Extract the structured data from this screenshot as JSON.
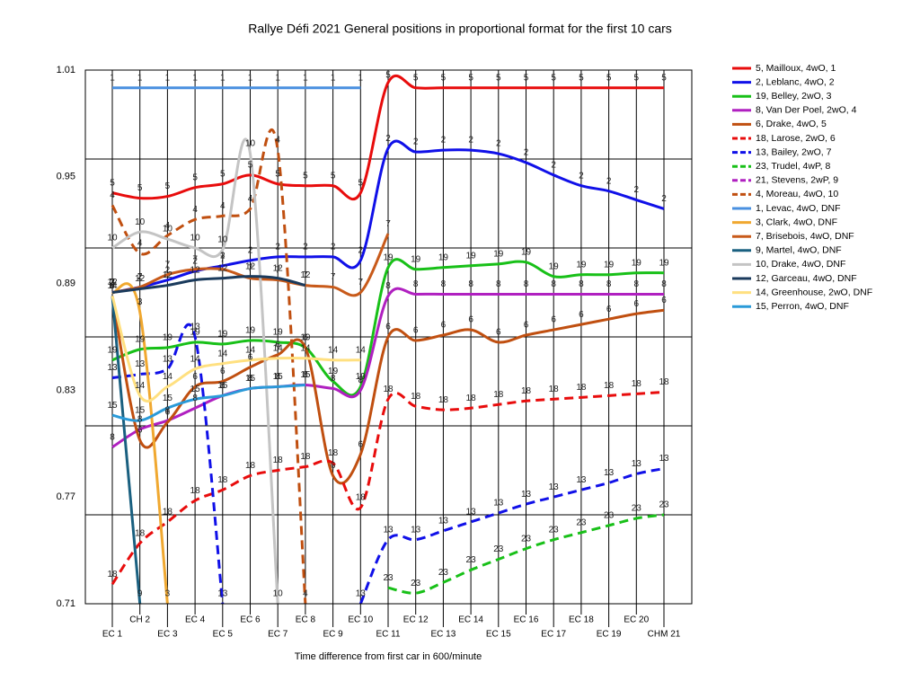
{
  "chart_data": {
    "type": "line",
    "title": "Rallye Défi 2021  General positions in proportional format for the first 10 cars",
    "x_label": "Time difference from first car in 600/minute",
    "categories": [
      "EC 1",
      "CH 2",
      "EC 3",
      "EC 4",
      "EC 5",
      "EC 6",
      "EC 7",
      "EC 8",
      "EC 9",
      "EC 10",
      "EC 11",
      "EC 12",
      "EC 13",
      "EC 14",
      "EC 15",
      "EC 16",
      "EC 17",
      "EC 18",
      "EC 19",
      "EC 20",
      "CHM 21"
    ],
    "ylim": [
      0.71,
      1.01
    ],
    "yticks": [
      0.71,
      0.77,
      0.83,
      0.89,
      0.95,
      1.01
    ],
    "ygrid": [
      0.76,
      0.81,
      0.86,
      0.91,
      0.96
    ],
    "grid": true,
    "legend": "right",
    "series": [
      {
        "name": "5, Mailloux, 4wO, 1",
        "label": "5",
        "color": "#e80c0c",
        "dash": false,
        "values": [
          0.941,
          0.938,
          0.939,
          0.944,
          0.946,
          0.951,
          0.946,
          0.945,
          0.945,
          0.941,
          1.003,
          1.0,
          1.0,
          1.0,
          1.0,
          1.0,
          1.0,
          1.0,
          1.0,
          1.0,
          1.0
        ]
      },
      {
        "name": "2, Leblanc, 4wO, 2",
        "label": "2",
        "color": "#1010e8",
        "dash": false,
        "values": [
          0.885,
          0.888,
          0.892,
          0.897,
          0.9,
          0.903,
          0.905,
          0.905,
          0.905,
          0.903,
          0.966,
          0.964,
          0.965,
          0.965,
          0.963,
          0.958,
          0.951,
          0.945,
          0.942,
          0.937,
          0.932
        ]
      },
      {
        "name": "19, Belley, 2wO, 3",
        "label": "19",
        "color": "#18c018",
        "dash": false,
        "values": [
          0.847,
          0.853,
          0.854,
          0.857,
          0.856,
          0.858,
          0.857,
          0.854,
          0.835,
          0.832,
          0.899,
          0.898,
          0.899,
          0.9,
          0.901,
          0.902,
          0.894,
          0.895,
          0.895,
          0.896,
          0.896
        ]
      },
      {
        "name": "8, Van Der Poel, 2wO, 4",
        "label": "8",
        "color": "#b020c0",
        "dash": false,
        "values": [
          0.798,
          0.808,
          0.813,
          0.82,
          0.827,
          0.831,
          0.832,
          0.833,
          0.831,
          0.83,
          0.883,
          0.884,
          0.884,
          0.884,
          0.884,
          0.884,
          0.884,
          0.884,
          0.884,
          0.884,
          0.884
        ]
      },
      {
        "name": "6, Drake, 4wO, 5",
        "label": "6",
        "color": "#c04f10",
        "dash": false,
        "values": [
          0.883,
          0.802,
          0.812,
          0.832,
          0.835,
          0.843,
          0.85,
          0.854,
          0.782,
          0.794,
          0.86,
          0.858,
          0.861,
          0.864,
          0.857,
          0.861,
          0.864,
          0.867,
          0.87,
          0.873,
          0.875
        ]
      },
      {
        "name": "18, Larose, 2wO, 6",
        "label": "18",
        "color": "#e80c0c",
        "dash": true,
        "values": [
          0.721,
          0.744,
          0.756,
          0.768,
          0.774,
          0.782,
          0.785,
          0.787,
          0.789,
          0.764,
          0.825,
          0.821,
          0.819,
          0.82,
          0.822,
          0.824,
          0.825,
          0.826,
          0.827,
          0.828,
          0.829
        ]
      },
      {
        "name": "13, Bailey, 2wO, 7",
        "label": "13",
        "color": "#1010e8",
        "dash": true,
        "values": [
          0.837,
          0.839,
          0.842,
          0.86,
          0.71,
          null,
          null,
          null,
          null,
          0.71,
          0.746,
          0.746,
          0.751,
          0.756,
          0.761,
          0.766,
          0.77,
          0.774,
          0.778,
          0.783,
          0.786
        ]
      },
      {
        "name": "23, Trudel, 4wP, 8",
        "label": "23",
        "color": "#18c018",
        "dash": true,
        "values": [
          null,
          null,
          null,
          null,
          null,
          null,
          null,
          null,
          null,
          null,
          0.719,
          0.716,
          0.722,
          0.729,
          0.735,
          0.741,
          0.746,
          0.75,
          0.754,
          0.758,
          0.76
        ]
      },
      {
        "name": "21, Stevens, 2wP, 9",
        "color": "#b020c0",
        "dash": true,
        "values": [
          null,
          null,
          null,
          null,
          null,
          null,
          null,
          null,
          null,
          null,
          null,
          null,
          null,
          null,
          null,
          null,
          null,
          null,
          null,
          null,
          null
        ]
      },
      {
        "name": "4, Moreau, 4wO, 10",
        "label": "4",
        "color": "#c04f10",
        "dash": true,
        "values": [
          0.934,
          0.907,
          0.917,
          0.926,
          0.928,
          0.932,
          0.965,
          0.71,
          null,
          null,
          null,
          null,
          null,
          null,
          null,
          null,
          null,
          null,
          null,
          null,
          null
        ]
      },
      {
        "name": "1, Levac, 4wO, DNF",
        "label": "1",
        "color": "#4a90e0",
        "dash": false,
        "values": [
          1.0,
          1.0,
          1.0,
          1.0,
          1.0,
          1.0,
          1.0,
          1.0,
          1.0,
          1.0,
          null,
          null,
          null,
          null,
          null,
          null,
          null,
          null,
          null,
          null,
          null
        ]
      },
      {
        "name": "3, Clark, 4wO, DNF",
        "label": "3",
        "color": "#f0a830",
        "dash": false,
        "values": [
          0.885,
          0.874,
          0.71,
          null,
          null,
          null,
          null,
          null,
          null,
          null,
          null,
          null,
          null,
          null,
          null,
          null,
          null,
          null,
          null,
          null,
          null
        ]
      },
      {
        "name": "7, Brisebois, 4wO, DNF",
        "label": "7",
        "color": "#c85a1a",
        "dash": false,
        "values": [
          0.885,
          0.888,
          0.895,
          0.898,
          0.898,
          0.893,
          0.892,
          0.889,
          0.888,
          0.885,
          0.918,
          null,
          null,
          null,
          null,
          null,
          null,
          null,
          null,
          null,
          null
        ]
      },
      {
        "name": "9, Martel, 4wO, DNF",
        "label": "9",
        "color": "#1a6080",
        "dash": false,
        "values": [
          0.883,
          0.71,
          null,
          null,
          null,
          null,
          null,
          null,
          null,
          null,
          null,
          null,
          null,
          null,
          null,
          null,
          null,
          null,
          null,
          null,
          null
        ]
      },
      {
        "name": "10, Drake, 4wO, DNF",
        "label": "10",
        "color": "#c4c4c4",
        "dash": false,
        "values": [
          0.91,
          0.919,
          0.915,
          0.91,
          0.909,
          0.963,
          0.71,
          null,
          null,
          null,
          null,
          null,
          null,
          null,
          null,
          null,
          null,
          null,
          null,
          null,
          null
        ]
      },
      {
        "name": "12, Garceau, 4wO, DNF",
        "label": "12",
        "color": "#1a3a5c",
        "dash": false,
        "values": [
          0.885,
          0.887,
          0.889,
          0.892,
          0.893,
          0.894,
          0.893,
          0.889,
          null,
          null,
          null,
          null,
          null,
          null,
          null,
          null,
          null,
          null,
          null,
          null,
          null
        ]
      },
      {
        "name": "14, Greenhouse, 2wO, DNF",
        "label": "14",
        "color": "#ffe080",
        "dash": false,
        "values": [
          0.883,
          0.827,
          0.832,
          0.842,
          0.845,
          0.847,
          0.848,
          0.848,
          0.847,
          0.847,
          null,
          null,
          null,
          null,
          null,
          null,
          null,
          null,
          null,
          null,
          null
        ]
      },
      {
        "name": "15, Perron, 4wO, DNF",
        "label": "15",
        "color": "#2a9ad8",
        "dash": false,
        "values": [
          0.816,
          0.813,
          0.82,
          0.825,
          0.827,
          0.831,
          0.832,
          0.833,
          null,
          null,
          null,
          null,
          null,
          null,
          null,
          null,
          null,
          null,
          null,
          null,
          null
        ]
      }
    ]
  }
}
